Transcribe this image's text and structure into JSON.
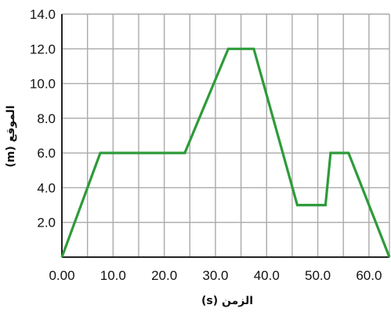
{
  "chart_data": {
    "type": "line",
    "title": "",
    "xlabel": "الزمن (s)",
    "ylabel": "الموقع (m)",
    "xlim": [
      0,
      64
    ],
    "ylim": [
      0,
      14
    ],
    "grid": true,
    "x_ticks": [
      0,
      5,
      10,
      15,
      20,
      25,
      30,
      35,
      40,
      45,
      50,
      55,
      60
    ],
    "y_ticks": [
      0,
      2,
      4,
      6,
      8,
      10,
      12,
      14
    ],
    "x_tick_labels": [
      "0.00",
      "",
      "10.0",
      "",
      "20.0",
      "",
      "30.0",
      "",
      "40.0",
      "",
      "50.0",
      "",
      "60.0"
    ],
    "y_tick_labels": [
      "",
      "2.0",
      "4.0",
      "6.0",
      "8.0",
      "10.0",
      "12.0",
      "14.0"
    ],
    "series": [
      {
        "color": "#2e9b3a",
        "x": [
          0,
          7.5,
          24,
          32.5,
          37.5,
          46,
          51.5,
          52.5,
          56,
          64
        ],
        "y": [
          0,
          6,
          6,
          12,
          12,
          3,
          3,
          6,
          6,
          0
        ]
      }
    ],
    "colors": {
      "grid": "#aaaaaa",
      "axis": "#222222"
    }
  }
}
